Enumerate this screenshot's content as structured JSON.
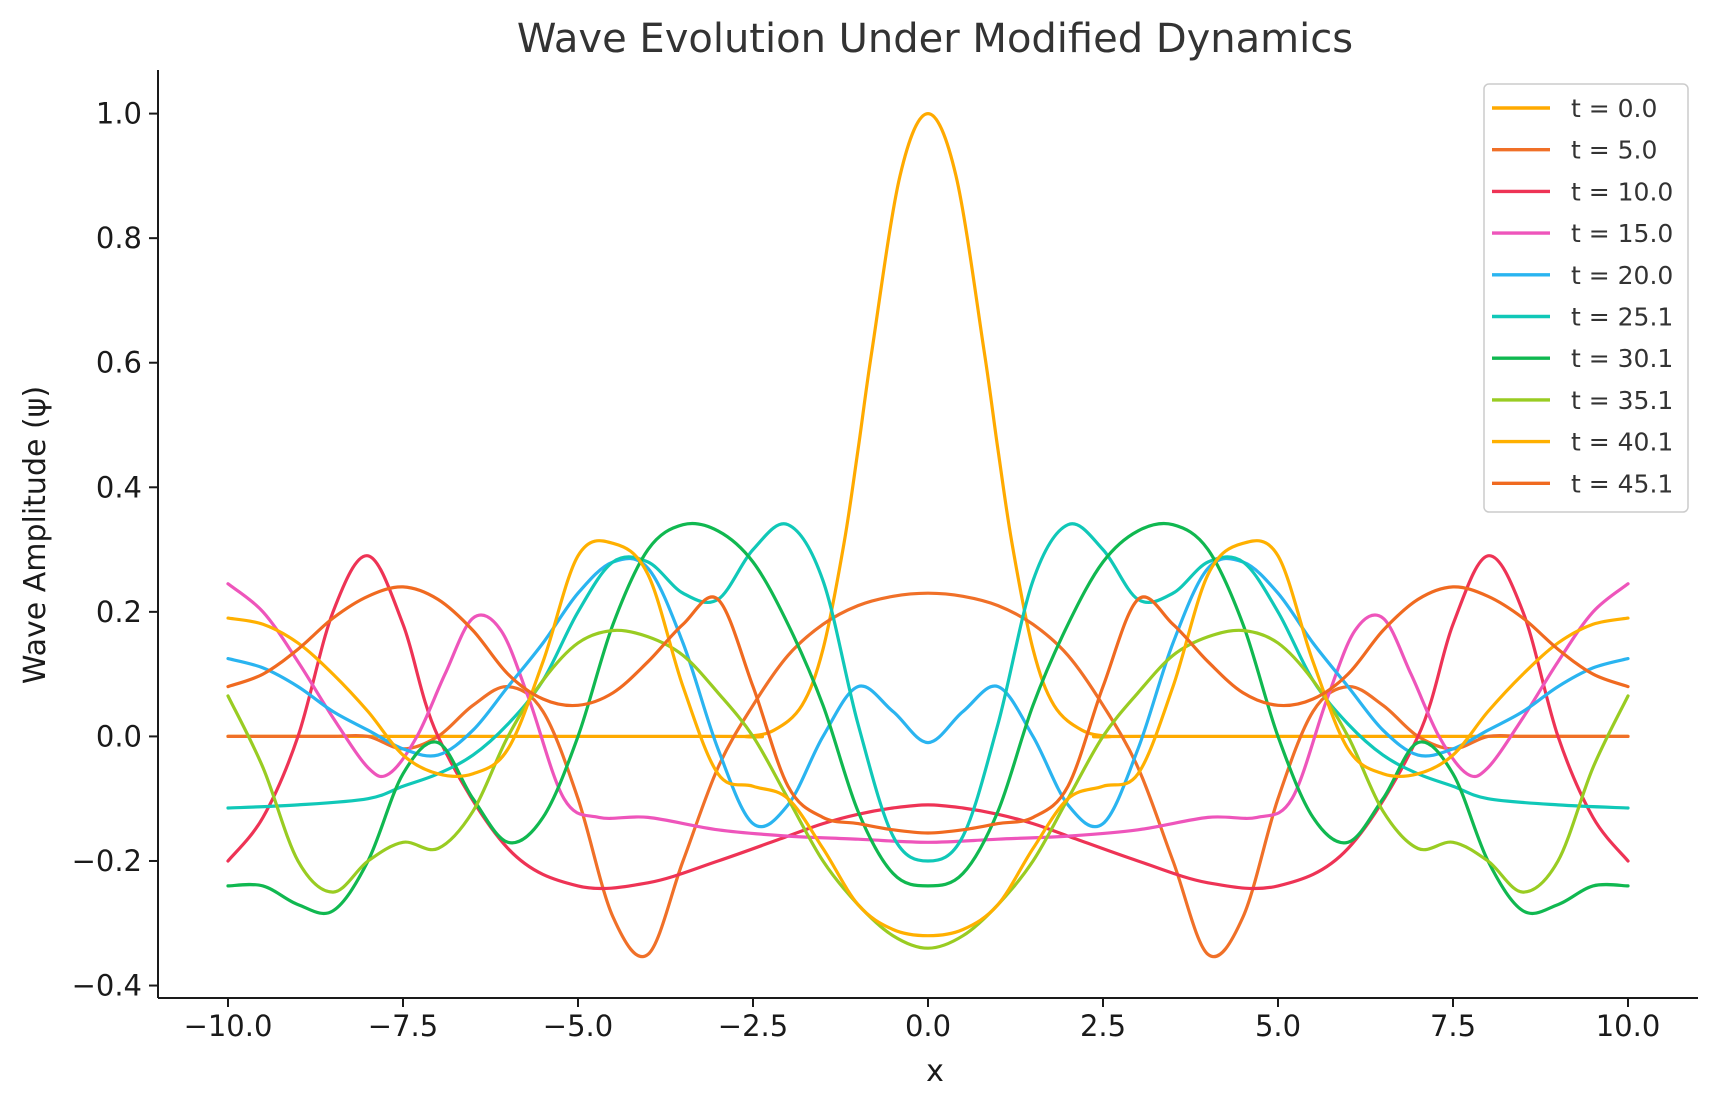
{
  "chart_data": {
    "type": "line",
    "title": "Wave Evolution Under Modified Dynamics",
    "xlabel": "x",
    "ylabel": "Wave Amplitude (ψ)",
    "xlim": [
      -11.0,
      11.0
    ],
    "ylim": [
      -0.42,
      1.07
    ],
    "xticks": [
      -10.0,
      -7.5,
      -5.0,
      -2.5,
      0.0,
      2.5,
      5.0,
      7.5,
      10.0
    ],
    "xtick_labels": [
      "−10.0",
      "−7.5",
      "−5.0",
      "−2.5",
      "0.0",
      "2.5",
      "5.0",
      "7.5",
      "10.0"
    ],
    "yticks": [
      -0.4,
      -0.2,
      0.0,
      0.2,
      0.4,
      0.6,
      0.8,
      1.0
    ],
    "ytick_labels": [
      "−0.4",
      "−0.2",
      "0.0",
      "0.2",
      "0.4",
      "0.6",
      "0.8",
      "1.0"
    ],
    "grid": false,
    "legend_position": "top-right",
    "symmetric_about_x0": true,
    "series": [
      {
        "name": "t = 0.0",
        "color": "#ffaa00",
        "x": [
          0,
          0.4,
          0.8,
          1.0,
          1.2,
          1.5,
          1.8,
          2.2,
          2.6,
          3.0,
          10
        ],
        "y": [
          1.0,
          0.9,
          0.62,
          0.46,
          0.31,
          0.14,
          0.05,
          0.01,
          0.0,
          0.0,
          0.0
        ]
      },
      {
        "name": "t = 5.0",
        "color": "#f07028",
        "x": [
          0,
          0.5,
          1.0,
          1.5,
          2.0,
          2.5,
          3.0,
          3.5,
          4.0,
          4.5,
          5.0,
          5.5,
          6.0,
          6.5,
          7.0,
          7.5,
          8.0,
          8.5,
          9.0,
          9.5,
          10
        ],
        "y": [
          0.23,
          0.225,
          0.21,
          0.18,
          0.13,
          0.05,
          -0.05,
          -0.2,
          -0.35,
          -0.29,
          -0.1,
          0.04,
          0.08,
          0.05,
          0.0,
          -0.02,
          0.0,
          0.0,
          0.0,
          0.0,
          0.0
        ]
      },
      {
        "name": "t = 10.0",
        "color": "#ee3355",
        "x": [
          0,
          0.5,
          1.0,
          1.5,
          2.0,
          3.0,
          4.0,
          5.0,
          6.0,
          7.0,
          7.5,
          8.0,
          8.5,
          9.0,
          9.5,
          10
        ],
        "y": [
          -0.11,
          -0.115,
          -0.125,
          -0.14,
          -0.16,
          -0.2,
          -0.235,
          -0.24,
          -0.18,
          0.0,
          0.18,
          0.29,
          0.2,
          0.0,
          -0.13,
          -0.2
        ]
      },
      {
        "name": "t = 15.0",
        "color": "#ee55bb",
        "x": [
          0,
          1.0,
          2.0,
          3.0,
          4.0,
          4.7,
          5.2,
          5.7,
          6.1,
          6.5,
          6.9,
          7.3,
          7.7,
          8.0,
          8.5,
          9.0,
          9.5,
          10
        ],
        "y": [
          -0.17,
          -0.165,
          -0.16,
          -0.15,
          -0.13,
          -0.13,
          -0.1,
          0.06,
          0.17,
          0.19,
          0.1,
          0.0,
          -0.06,
          -0.05,
          0.03,
          0.12,
          0.2,
          0.245
        ]
      },
      {
        "name": "t = 20.0",
        "color": "#2ab4f0",
        "x": [
          0,
          0.5,
          1.0,
          1.5,
          2.0,
          2.5,
          3.0,
          3.5,
          4.0,
          4.5,
          5.0,
          5.5,
          6.0,
          6.5,
          7.0,
          7.5,
          8.0,
          8.5,
          9.0,
          9.5,
          10
        ],
        "y": [
          -0.01,
          0.04,
          0.08,
          0.0,
          -0.11,
          -0.14,
          -0.02,
          0.15,
          0.27,
          0.28,
          0.23,
          0.15,
          0.08,
          0.01,
          -0.03,
          -0.02,
          0.01,
          0.04,
          0.08,
          0.11,
          0.125
        ]
      },
      {
        "name": "t = 25.1",
        "color": "#10c8b8",
        "x": [
          0,
          0.5,
          1.0,
          1.5,
          2.0,
          2.5,
          3.0,
          3.5,
          4.0,
          4.5,
          5.0,
          5.5,
          6.0,
          6.5,
          7.0,
          7.5,
          8.0,
          9.0,
          10
        ],
        "y": [
          -0.2,
          -0.16,
          0.02,
          0.25,
          0.34,
          0.3,
          0.22,
          0.23,
          0.28,
          0.28,
          0.2,
          0.09,
          0.02,
          -0.03,
          -0.06,
          -0.08,
          -0.1,
          -0.11,
          -0.115
        ]
      },
      {
        "name": "t = 30.1",
        "color": "#10b850",
        "x": [
          0,
          0.5,
          1.0,
          1.5,
          2.0,
          2.5,
          3.0,
          3.5,
          4.0,
          4.5,
          5.0,
          5.5,
          6.0,
          6.5,
          7.0,
          7.5,
          8.0,
          8.5,
          9.0,
          9.5,
          10
        ],
        "y": [
          -0.24,
          -0.22,
          -0.12,
          0.05,
          0.18,
          0.28,
          0.33,
          0.34,
          0.3,
          0.18,
          0.0,
          -0.13,
          -0.17,
          -0.1,
          -0.01,
          -0.06,
          -0.2,
          -0.28,
          -0.27,
          -0.24,
          -0.24
        ]
      },
      {
        "name": "t = 35.1",
        "color": "#99cc22",
        "x": [
          0,
          0.5,
          1.0,
          1.5,
          2.0,
          2.5,
          3.0,
          3.5,
          4.0,
          4.5,
          5.0,
          5.5,
          6.0,
          6.5,
          7.0,
          7.5,
          8.0,
          8.5,
          9.0,
          9.5,
          10
        ],
        "y": [
          -0.34,
          -0.32,
          -0.27,
          -0.2,
          -0.1,
          0.0,
          0.07,
          0.13,
          0.16,
          0.17,
          0.15,
          0.09,
          0.0,
          -0.12,
          -0.18,
          -0.17,
          -0.2,
          -0.25,
          -0.2,
          -0.05,
          0.065
        ]
      },
      {
        "name": "t = 40.1",
        "color": "#ffb000",
        "x": [
          0,
          0.5,
          1.0,
          1.5,
          2.0,
          2.5,
          3.0,
          3.5,
          4.0,
          4.5,
          5.0,
          5.5,
          6.0,
          6.5,
          7.0,
          7.5,
          8.0,
          8.5,
          9.0,
          9.5,
          10
        ],
        "y": [
          -0.32,
          -0.31,
          -0.27,
          -0.18,
          -0.1,
          -0.08,
          -0.06,
          0.08,
          0.26,
          0.31,
          0.29,
          0.12,
          -0.02,
          -0.06,
          -0.06,
          -0.03,
          0.04,
          0.1,
          0.15,
          0.18,
          0.19
        ]
      },
      {
        "name": "t = 45.1",
        "color": "#f06a20",
        "x": [
          0,
          0.5,
          1.0,
          1.5,
          2.0,
          2.5,
          3.0,
          3.5,
          4.0,
          4.5,
          5.0,
          5.5,
          6.0,
          6.5,
          7.0,
          7.5,
          8.0,
          8.5,
          9.0,
          9.5,
          10
        ],
        "y": [
          -0.155,
          -0.15,
          -0.14,
          -0.13,
          -0.08,
          0.08,
          0.22,
          0.18,
          0.12,
          0.07,
          0.05,
          0.06,
          0.1,
          0.17,
          0.22,
          0.24,
          0.225,
          0.19,
          0.14,
          0.1,
          0.08
        ]
      }
    ]
  }
}
